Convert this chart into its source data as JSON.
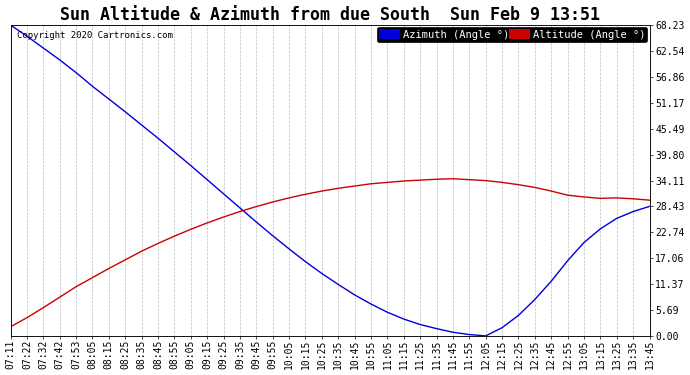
{
  "title": "Sun Altitude & Azimuth from due South  Sun Feb 9 13:51",
  "copyright": "Copyright 2020 Cartronics.com",
  "legend_azimuth": "Azimuth (Angle °)",
  "legend_altitude": "Altitude (Angle °)",
  "azimuth_color": "#0000dd",
  "altitude_color": "#cc0000",
  "background_color": "#ffffff",
  "plot_bg_color": "#ffffff",
  "yticks": [
    0.0,
    5.69,
    11.37,
    17.06,
    22.74,
    28.43,
    34.11,
    39.8,
    45.49,
    51.17,
    56.86,
    62.54,
    68.23
  ],
  "time_labels": [
    "07:11",
    "07:22",
    "07:32",
    "07:42",
    "07:53",
    "08:05",
    "08:15",
    "08:25",
    "08:35",
    "08:45",
    "08:55",
    "09:05",
    "09:15",
    "09:25",
    "09:35",
    "09:45",
    "09:55",
    "10:05",
    "10:15",
    "10:25",
    "10:35",
    "10:45",
    "10:55",
    "11:05",
    "11:15",
    "11:25",
    "11:35",
    "11:45",
    "11:55",
    "12:05",
    "12:15",
    "12:25",
    "12:35",
    "12:45",
    "12:55",
    "13:05",
    "13:15",
    "13:25",
    "13:35",
    "13:45"
  ],
  "azimuth_values": [
    68.23,
    65.8,
    63.2,
    60.6,
    57.8,
    54.8,
    52.0,
    49.2,
    46.3,
    43.4,
    40.4,
    37.4,
    34.3,
    31.2,
    28.1,
    25.0,
    22.0,
    19.1,
    16.3,
    13.7,
    11.3,
    9.0,
    7.0,
    5.2,
    3.7,
    2.5,
    1.6,
    0.8,
    0.3,
    0.0,
    1.8,
    4.5,
    8.0,
    12.0,
    16.5,
    20.5,
    23.5,
    25.8,
    27.3,
    28.43
  ],
  "altitude_values": [
    2.0,
    4.0,
    6.2,
    8.5,
    10.8,
    12.8,
    14.8,
    16.7,
    18.6,
    20.3,
    21.9,
    23.4,
    24.8,
    26.1,
    27.3,
    28.4,
    29.4,
    30.3,
    31.1,
    31.8,
    32.4,
    32.9,
    33.4,
    33.7,
    34.0,
    34.2,
    34.4,
    34.5,
    34.3,
    34.1,
    33.7,
    33.2,
    32.6,
    31.8,
    30.9,
    30.5,
    30.2,
    30.3,
    30.1,
    29.8
  ],
  "grid_color": "#bbbbbb",
  "title_fontsize": 12,
  "tick_fontsize": 7,
  "legend_fontsize": 7.5,
  "fig_width": 6.9,
  "fig_height": 3.75,
  "dpi": 100
}
